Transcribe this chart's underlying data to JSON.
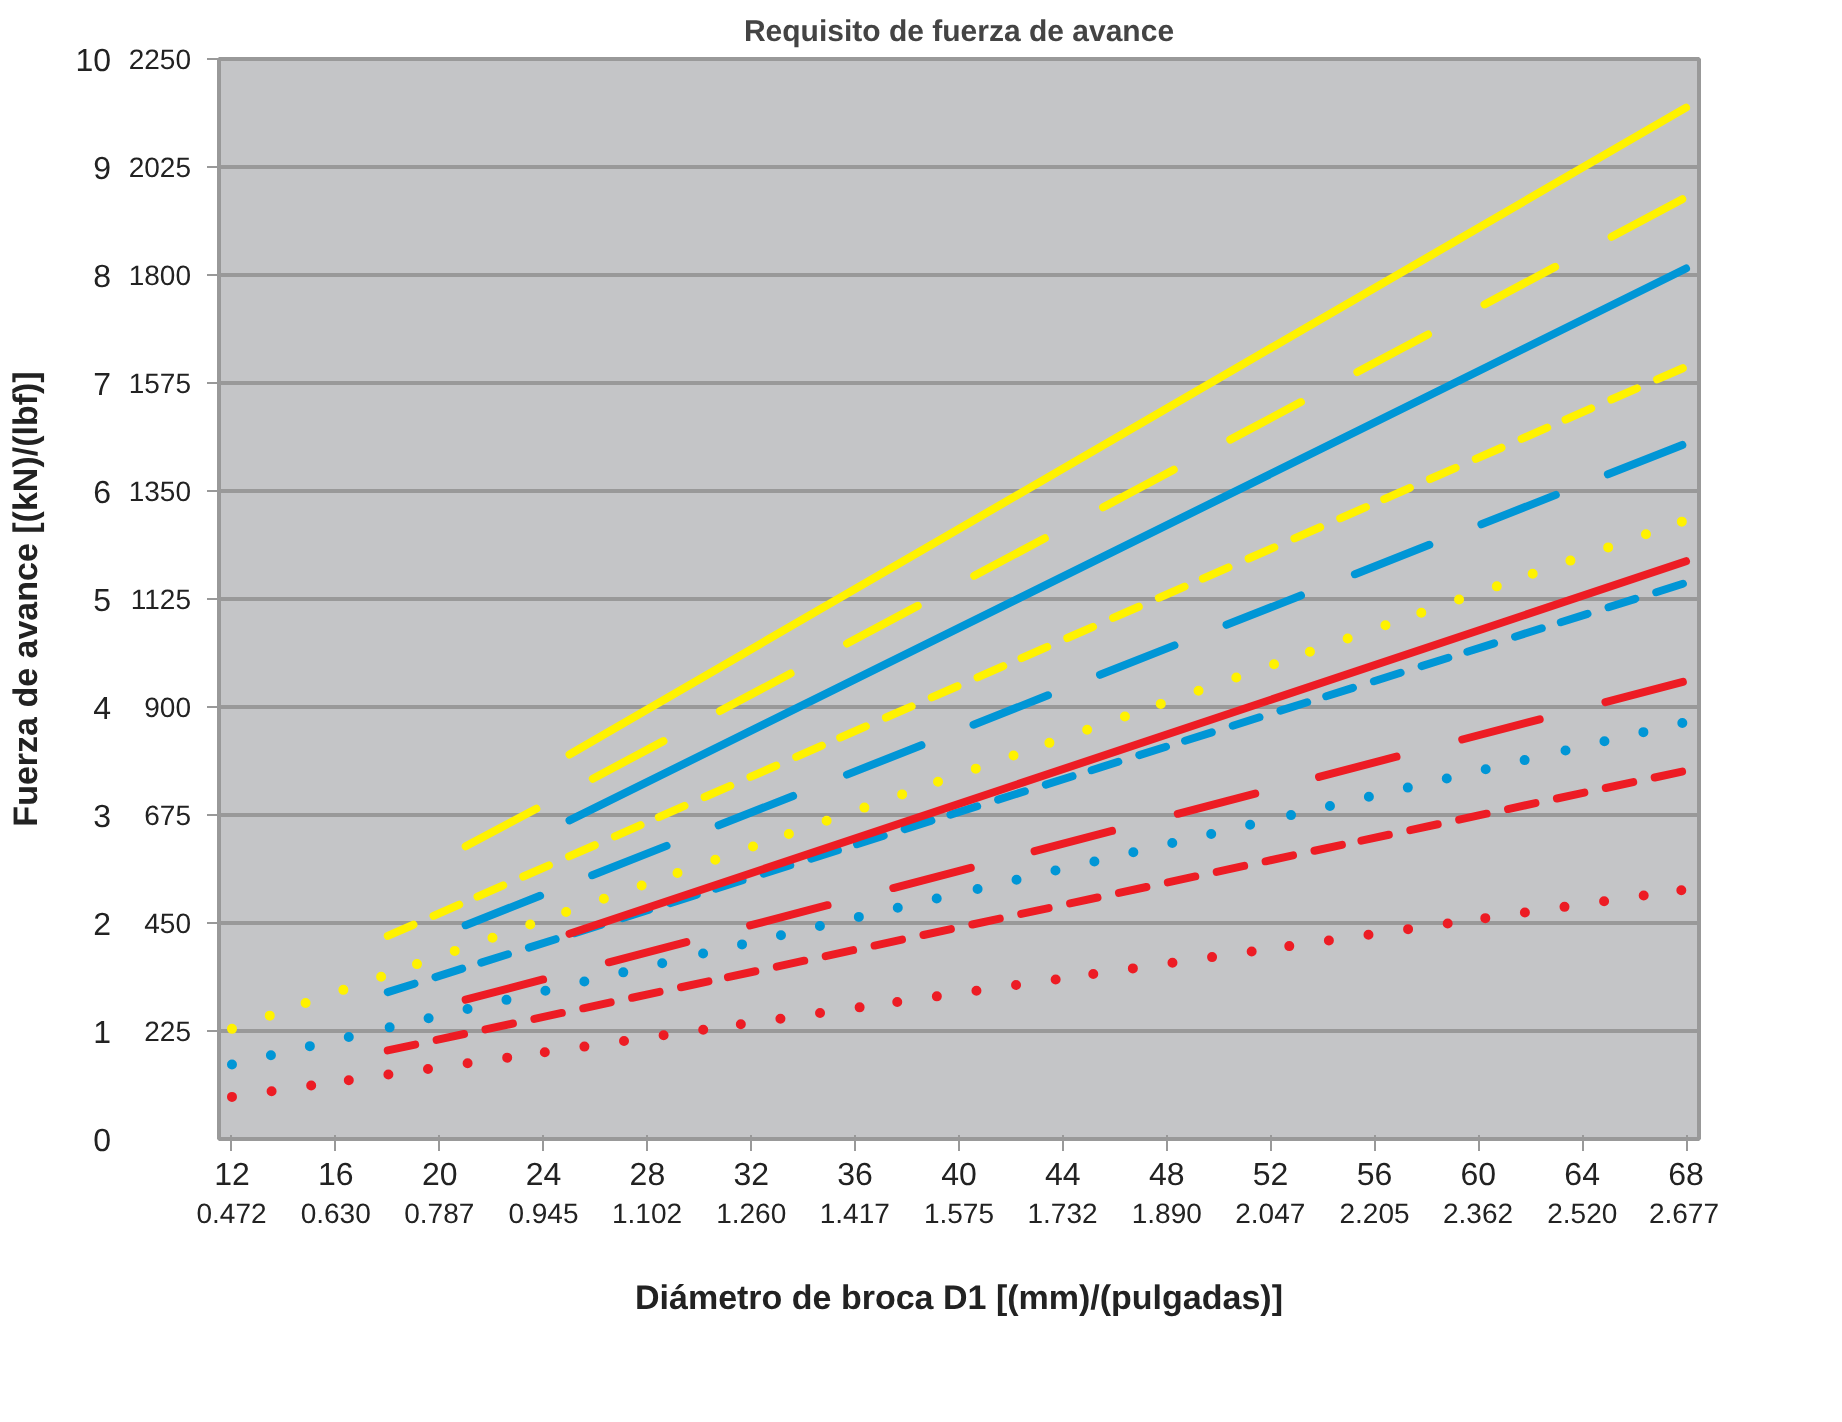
{
  "chart_data": {
    "type": "line",
    "title": "Requisito de fuerza de avance",
    "xlabel": "Diámetro de broca D1 [(mm)/(pulgadas)]",
    "ylabel": "Fuerza de avance [(kN)/(lbf)]",
    "xlim": [
      11.5,
      68.5
    ],
    "xticks": [
      12,
      16,
      20,
      24,
      28,
      32,
      36,
      40,
      44,
      48,
      52,
      56,
      60,
      64,
      68
    ],
    "x2lim": [
      0.453,
      2.697
    ],
    "x2ticks": [
      0.472,
      {
        "value": 0.63,
        "label": "0.630"
      },
      0.787,
      0.945,
      1.102,
      {
        "value": 1.26,
        "label": "1.260"
      },
      1.417,
      1.575,
      1.732,
      {
        "value": 1.89,
        "label": "1.890"
      },
      2.047,
      2.205,
      2.362,
      {
        "value": 2.52,
        "label": "2.520"
      },
      2.677
    ],
    "ylim": [
      0,
      10
    ],
    "yticks": [
      0,
      1,
      2,
      3,
      4,
      5,
      6,
      7,
      8,
      9,
      10
    ],
    "y2lim": [
      0,
      2250
    ],
    "y2ticks": [
      225,
      450,
      675,
      900,
      1125,
      1350,
      1575,
      1800,
      2025,
      2250
    ],
    "grid": "y",
    "marker": "none",
    "series": [
      {
        "color": "#ed1c24",
        "line_style": "dotted",
        "x": [
          12,
          68
        ],
        "values": [
          0.39,
          2.31
        ]
      },
      {
        "color": "#0096d6",
        "line_style": "dotted",
        "x": [
          12,
          68
        ],
        "values": [
          0.69,
          3.86
        ]
      },
      {
        "color": "#fff200",
        "line_style": "dotted",
        "x": [
          12,
          68
        ],
        "values": [
          1.02,
          5.73
        ]
      },
      {
        "color": "#ed1c24",
        "line_style": "dashed",
        "x": [
          18,
          68
        ],
        "values": [
          0.82,
          3.41
        ]
      },
      {
        "color": "#0096d6",
        "line_style": "dashed",
        "x": [
          18,
          68
        ],
        "values": [
          1.36,
          5.15
        ]
      },
      {
        "color": "#fff200",
        "line_style": "dashed",
        "x": [
          18,
          68
        ],
        "values": [
          1.88,
          7.15
        ]
      },
      {
        "color": "#ed1c24",
        "line_style": "longdashed",
        "x": [
          21,
          68
        ],
        "values": [
          1.29,
          4.24
        ]
      },
      {
        "color": "#0096d6",
        "line_style": "longdashed",
        "x": [
          21,
          68
        ],
        "values": [
          1.98,
          6.44
        ]
      },
      {
        "color": "#fff200",
        "line_style": "longdashed",
        "x": [
          21,
          68
        ],
        "values": [
          2.71,
          8.72
        ]
      },
      {
        "color": "#ed1c24",
        "line_style": "solid",
        "x": [
          25,
          68
        ],
        "values": [
          1.9,
          5.35
        ]
      },
      {
        "color": "#0096d6",
        "line_style": "solid",
        "x": [
          25,
          68
        ],
        "values": [
          2.95,
          8.06
        ]
      },
      {
        "color": "#fff200",
        "line_style": "solid",
        "x": [
          25,
          68
        ],
        "values": [
          3.56,
          9.55
        ]
      }
    ]
  }
}
